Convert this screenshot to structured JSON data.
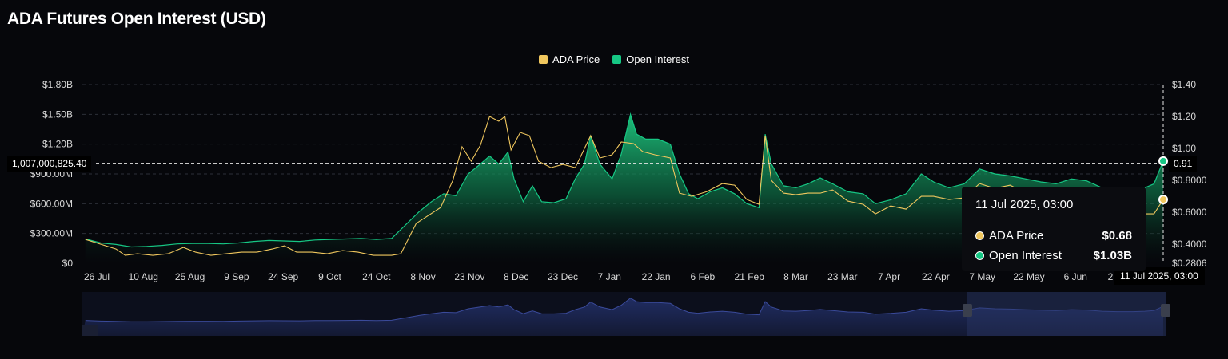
{
  "chart_data": {
    "type": "line",
    "title": "ADA Futures Open Interest (USD)",
    "legend": {
      "position": "top-center"
    },
    "grid": true,
    "x_ticks": [
      "26 Jul",
      "10 Aug",
      "25 Aug",
      "9 Sep",
      "24 Sep",
      "9 Oct",
      "24 Oct",
      "8 Nov",
      "23 Nov",
      "8 Dec",
      "23 Dec",
      "7 Jan",
      "22 Jan",
      "6 Feb",
      "21 Feb",
      "8 Mar",
      "23 Mar",
      "7 Apr",
      "22 Apr",
      "7 May",
      "22 May",
      "6 Jun",
      "21 Jun"
    ],
    "y_left": {
      "ticks": [
        "$0",
        "$300.00M",
        "$600.00M",
        "$900.00M",
        "$1.20B",
        "$1.50B",
        "$1.80B"
      ],
      "range": [
        0,
        1800000000
      ]
    },
    "y_right": {
      "ticks": [
        "$0.2806",
        "$0.4000",
        "$0.6000",
        "$0.8000",
        "$1.00",
        "$1.20",
        "$1.40"
      ],
      "range": [
        0.2806,
        1.4
      ]
    },
    "series": [
      {
        "name": "Open Interest",
        "axis": "left",
        "type": "area",
        "color": "#16c784",
        "points": [
          [
            "2024-07-24",
            245000000
          ],
          [
            "2024-07-29",
            205000000
          ],
          [
            "2024-08-03",
            190000000
          ],
          [
            "2024-08-08",
            165000000
          ],
          [
            "2024-08-13",
            170000000
          ],
          [
            "2024-08-18",
            180000000
          ],
          [
            "2024-08-23",
            195000000
          ],
          [
            "2024-08-28",
            200000000
          ],
          [
            "2024-09-02",
            200000000
          ],
          [
            "2024-09-07",
            195000000
          ],
          [
            "2024-09-12",
            205000000
          ],
          [
            "2024-09-17",
            220000000
          ],
          [
            "2024-09-22",
            230000000
          ],
          [
            "2024-09-27",
            225000000
          ],
          [
            "2024-10-02",
            220000000
          ],
          [
            "2024-10-07",
            235000000
          ],
          [
            "2024-10-12",
            240000000
          ],
          [
            "2024-10-17",
            245000000
          ],
          [
            "2024-10-22",
            250000000
          ],
          [
            "2024-10-27",
            240000000
          ],
          [
            "2024-11-01",
            250000000
          ],
          [
            "2024-11-06",
            400000000
          ],
          [
            "2024-11-10",
            520000000
          ],
          [
            "2024-11-14",
            620000000
          ],
          [
            "2024-11-18",
            700000000
          ],
          [
            "2024-11-22",
            680000000
          ],
          [
            "2024-11-26",
            900000000
          ],
          [
            "2024-11-30",
            1000000000
          ],
          [
            "2024-12-03",
            1080000000
          ],
          [
            "2024-12-06",
            1000000000
          ],
          [
            "2024-12-09",
            1120000000
          ],
          [
            "2024-12-11",
            850000000
          ],
          [
            "2024-12-14",
            620000000
          ],
          [
            "2024-12-17",
            780000000
          ],
          [
            "2024-12-20",
            620000000
          ],
          [
            "2024-12-24",
            610000000
          ],
          [
            "2024-12-28",
            650000000
          ],
          [
            "2024-12-31",
            850000000
          ],
          [
            "2025-01-03",
            1000000000
          ],
          [
            "2025-01-05",
            1280000000
          ],
          [
            "2025-01-08",
            1000000000
          ],
          [
            "2025-01-12",
            850000000
          ],
          [
            "2025-01-15",
            1100000000
          ],
          [
            "2025-01-18",
            1500000000
          ],
          [
            "2025-01-20",
            1300000000
          ],
          [
            "2025-01-23",
            1250000000
          ],
          [
            "2025-01-27",
            1250000000
          ],
          [
            "2025-01-31",
            1200000000
          ],
          [
            "2025-02-03",
            900000000
          ],
          [
            "2025-02-06",
            700000000
          ],
          [
            "2025-02-09",
            650000000
          ],
          [
            "2025-02-13",
            720000000
          ],
          [
            "2025-02-17",
            760000000
          ],
          [
            "2025-02-21",
            700000000
          ],
          [
            "2025-02-25",
            600000000
          ],
          [
            "2025-03-01",
            560000000
          ],
          [
            "2025-03-03",
            1300000000
          ],
          [
            "2025-03-05",
            1000000000
          ],
          [
            "2025-03-09",
            780000000
          ],
          [
            "2025-03-13",
            760000000
          ],
          [
            "2025-03-17",
            800000000
          ],
          [
            "2025-03-21",
            860000000
          ],
          [
            "2025-03-25",
            800000000
          ],
          [
            "2025-03-30",
            720000000
          ],
          [
            "2025-04-04",
            700000000
          ],
          [
            "2025-04-08",
            600000000
          ],
          [
            "2025-04-13",
            640000000
          ],
          [
            "2025-04-18",
            700000000
          ],
          [
            "2025-04-23",
            900000000
          ],
          [
            "2025-04-27",
            820000000
          ],
          [
            "2025-05-02",
            760000000
          ],
          [
            "2025-05-07",
            800000000
          ],
          [
            "2025-05-12",
            950000000
          ],
          [
            "2025-05-17",
            900000000
          ],
          [
            "2025-05-22",
            880000000
          ],
          [
            "2025-05-27",
            850000000
          ],
          [
            "2025-06-01",
            820000000
          ],
          [
            "2025-06-06",
            800000000
          ],
          [
            "2025-06-11",
            850000000
          ],
          [
            "2025-06-16",
            830000000
          ],
          [
            "2025-06-21",
            760000000
          ],
          [
            "2025-06-26",
            740000000
          ],
          [
            "2025-07-01",
            740000000
          ],
          [
            "2025-07-05",
            760000000
          ],
          [
            "2025-07-08",
            800000000
          ],
          [
            "2025-07-11",
            1030000000
          ]
        ]
      },
      {
        "name": "ADA Price",
        "axis": "right",
        "type": "line",
        "color": "#f0c75e",
        "points": [
          [
            "2024-07-24",
            0.43
          ],
          [
            "2024-07-29",
            0.4
          ],
          [
            "2024-08-03",
            0.37
          ],
          [
            "2024-08-06",
            0.33
          ],
          [
            "2024-08-10",
            0.34
          ],
          [
            "2024-08-15",
            0.33
          ],
          [
            "2024-08-20",
            0.34
          ],
          [
            "2024-08-25",
            0.38
          ],
          [
            "2024-08-29",
            0.35
          ],
          [
            "2024-09-03",
            0.33
          ],
          [
            "2024-09-08",
            0.34
          ],
          [
            "2024-09-13",
            0.35
          ],
          [
            "2024-09-18",
            0.35
          ],
          [
            "2024-09-23",
            0.37
          ],
          [
            "2024-09-27",
            0.39
          ],
          [
            "2024-10-01",
            0.35
          ],
          [
            "2024-10-06",
            0.35
          ],
          [
            "2024-10-11",
            0.34
          ],
          [
            "2024-10-16",
            0.36
          ],
          [
            "2024-10-21",
            0.35
          ],
          [
            "2024-10-26",
            0.33
          ],
          [
            "2024-11-01",
            0.33
          ],
          [
            "2024-11-04",
            0.34
          ],
          [
            "2024-11-09",
            0.53
          ],
          [
            "2024-11-13",
            0.58
          ],
          [
            "2024-11-17",
            0.63
          ],
          [
            "2024-11-21",
            0.8
          ],
          [
            "2024-11-24",
            1.01
          ],
          [
            "2024-11-27",
            0.92
          ],
          [
            "2024-11-30",
            1.02
          ],
          [
            "2024-12-03",
            1.2
          ],
          [
            "2024-12-06",
            1.17
          ],
          [
            "2024-12-08",
            1.2
          ],
          [
            "2024-12-10",
            0.99
          ],
          [
            "2024-12-13",
            1.1
          ],
          [
            "2024-12-16",
            1.08
          ],
          [
            "2024-12-19",
            0.92
          ],
          [
            "2024-12-23",
            0.88
          ],
          [
            "2024-12-27",
            0.9
          ],
          [
            "2024-12-31",
            0.88
          ],
          [
            "2025-01-05",
            1.08
          ],
          [
            "2025-01-08",
            0.94
          ],
          [
            "2025-01-12",
            0.96
          ],
          [
            "2025-01-15",
            1.04
          ],
          [
            "2025-01-19",
            1.03
          ],
          [
            "2025-01-22",
            0.98
          ],
          [
            "2025-01-26",
            0.96
          ],
          [
            "2025-01-31",
            0.94
          ],
          [
            "2025-02-03",
            0.72
          ],
          [
            "2025-02-07",
            0.7
          ],
          [
            "2025-02-12",
            0.73
          ],
          [
            "2025-02-17",
            0.78
          ],
          [
            "2025-02-21",
            0.77
          ],
          [
            "2025-02-25",
            0.68
          ],
          [
            "2025-03-01",
            0.65
          ],
          [
            "2025-03-03",
            1.08
          ],
          [
            "2025-03-05",
            0.8
          ],
          [
            "2025-03-09",
            0.72
          ],
          [
            "2025-03-13",
            0.71
          ],
          [
            "2025-03-17",
            0.72
          ],
          [
            "2025-03-21",
            0.72
          ],
          [
            "2025-03-25",
            0.74
          ],
          [
            "2025-03-30",
            0.67
          ],
          [
            "2025-04-04",
            0.65
          ],
          [
            "2025-04-08",
            0.59
          ],
          [
            "2025-04-13",
            0.64
          ],
          [
            "2025-04-18",
            0.62
          ],
          [
            "2025-04-23",
            0.7
          ],
          [
            "2025-04-27",
            0.7
          ],
          [
            "2025-05-02",
            0.68
          ],
          [
            "2025-05-07",
            0.69
          ],
          [
            "2025-05-12",
            0.78
          ],
          [
            "2025-05-17",
            0.75
          ],
          [
            "2025-05-22",
            0.77
          ],
          [
            "2025-05-27",
            0.72
          ],
          [
            "2025-06-01",
            0.68
          ],
          [
            "2025-06-06",
            0.65
          ],
          [
            "2025-06-11",
            0.7
          ],
          [
            "2025-06-16",
            0.63
          ],
          [
            "2025-06-21",
            0.56
          ],
          [
            "2025-06-26",
            0.56
          ],
          [
            "2025-07-01",
            0.57
          ],
          [
            "2025-07-05",
            0.59
          ],
          [
            "2025-07-08",
            0.59
          ],
          [
            "2025-07-11",
            0.68
          ]
        ]
      }
    ],
    "tooltip": {
      "date": "11 Jul 2025, 03:00",
      "rows": [
        {
          "label": "ADA Price",
          "value": "$0.68"
        },
        {
          "label": "Open Interest",
          "value": "$1.03B"
        }
      ]
    },
    "crosshair": {
      "y_label": "1,007,000,825.40",
      "right_label": "0.91",
      "x_label": "11 Jul 2025, 03:00",
      "y_value": 1007000825.4
    },
    "navigator_color": "#3a4a9a"
  }
}
